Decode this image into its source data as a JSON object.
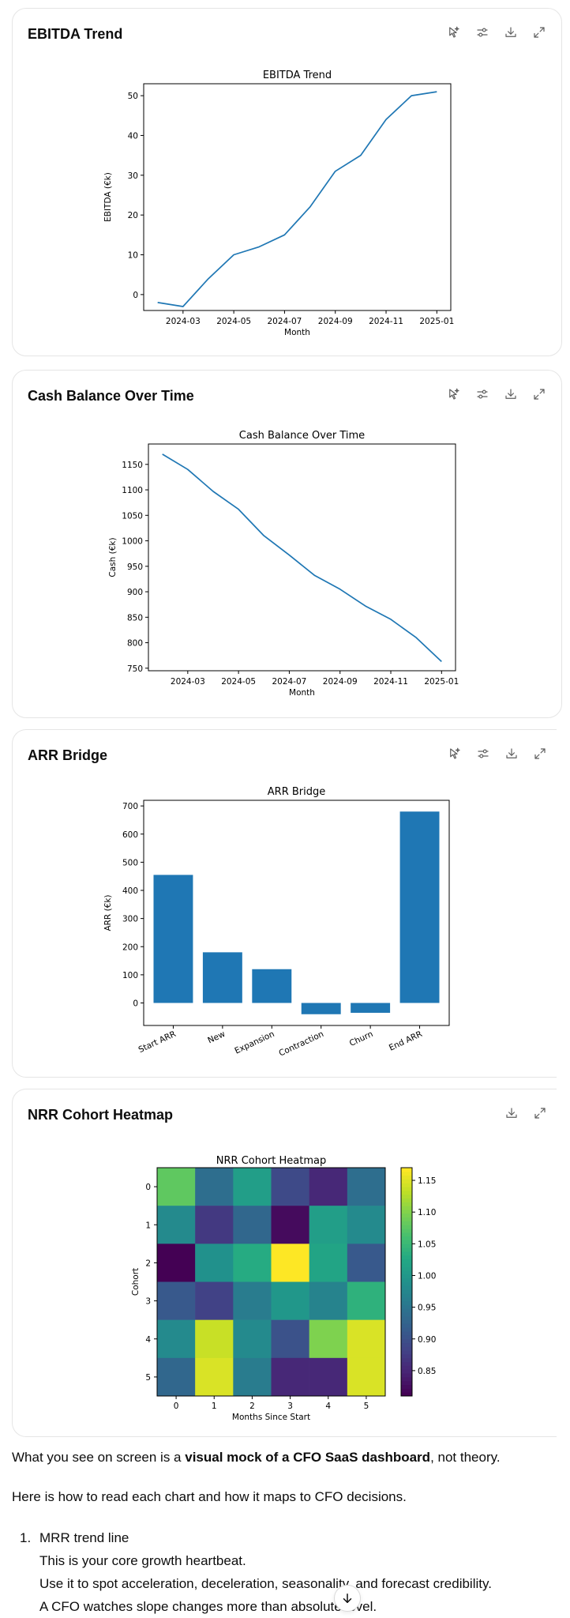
{
  "cards": [
    {
      "title": "EBITDA Trend",
      "actions": [
        "explain-icon",
        "settings-icon",
        "download-icon",
        "expand-icon"
      ],
      "chart_data": {
        "type": "line",
        "title": "EBITDA Trend",
        "xlabel": "Month",
        "ylabel": "EBITDA (€k)",
        "x": [
          "2024-02",
          "2024-03",
          "2024-04",
          "2024-05",
          "2024-06",
          "2024-07",
          "2024-08",
          "2024-09",
          "2024-10",
          "2024-11",
          "2024-12",
          "2025-01"
        ],
        "values": [
          -2,
          -3,
          4,
          10,
          12,
          15,
          22,
          31,
          35,
          44,
          50,
          51
        ],
        "xticks": [
          "2024-03",
          "2024-05",
          "2024-07",
          "2024-09",
          "2024-11",
          "2025-01"
        ],
        "yticks": [
          0,
          10,
          20,
          30,
          40,
          50
        ],
        "ylim": [
          -4,
          53
        ],
        "color": "#1f77b4"
      }
    },
    {
      "title": "Cash Balance Over Time",
      "actions": [
        "explain-icon",
        "settings-icon",
        "download-icon",
        "expand-icon"
      ],
      "chart_data": {
        "type": "line",
        "title": "Cash Balance Over Time",
        "xlabel": "Month",
        "ylabel": "Cash (€k)",
        "x": [
          "2024-02",
          "2024-03",
          "2024-04",
          "2024-05",
          "2024-06",
          "2024-07",
          "2024-08",
          "2024-09",
          "2024-10",
          "2024-11",
          "2024-12",
          "2025-01"
        ],
        "values": [
          1170,
          1140,
          1097,
          1062,
          1010,
          972,
          932,
          905,
          872,
          846,
          810,
          763
        ],
        "xticks": [
          "2024-03",
          "2024-05",
          "2024-07",
          "2024-09",
          "2024-11",
          "2025-01"
        ],
        "yticks": [
          750,
          800,
          850,
          900,
          950,
          1000,
          1050,
          1100,
          1150
        ],
        "ylim": [
          745,
          1190
        ],
        "color": "#1f77b4"
      }
    },
    {
      "title": "ARR Bridge",
      "actions": [
        "explain-icon",
        "settings-icon",
        "download-icon",
        "expand-icon"
      ],
      "chart_data": {
        "type": "bar",
        "title": "ARR Bridge",
        "xlabel": "",
        "ylabel": "ARR (€k)",
        "categories": [
          "Start ARR",
          "New",
          "Expansion",
          "Contraction",
          "Churn",
          "End ARR"
        ],
        "values": [
          455,
          180,
          120,
          -40,
          -35,
          680
        ],
        "yticks": [
          0,
          100,
          200,
          300,
          400,
          500,
          600,
          700
        ],
        "ylim": [
          -80,
          720
        ],
        "color": "#1f77b4"
      }
    },
    {
      "title": "NRR Cohort Heatmap",
      "actions": [
        "download-icon",
        "expand-icon"
      ],
      "chart_data": {
        "type": "heatmap",
        "title": "NRR Cohort Heatmap",
        "xlabel": "Months Since Start",
        "ylabel": "Cohort",
        "x": [
          "0",
          "1",
          "2",
          "3",
          "4",
          "5"
        ],
        "y": [
          "0",
          "1",
          "2",
          "3",
          "4",
          "5"
        ],
        "values": [
          [
            1.08,
            0.94,
            1.01,
            0.89,
            0.85,
            0.94
          ],
          [
            0.98,
            0.87,
            0.93,
            0.82,
            1.01,
            0.98
          ],
          [
            0.81,
            0.99,
            1.03,
            1.17,
            1.02,
            0.91
          ],
          [
            0.91,
            0.88,
            0.96,
            1.0,
            0.97,
            1.04
          ],
          [
            0.98,
            1.14,
            0.98,
            0.9,
            1.1,
            1.15
          ],
          [
            0.93,
            1.15,
            0.96,
            0.85,
            0.85,
            1.15
          ]
        ],
        "colorbar_ticks": [
          0.85,
          0.9,
          0.95,
          1.0,
          1.05,
          1.1,
          1.15
        ],
        "vmin": 0.81,
        "vmax": 1.17,
        "colormap": "viridis"
      }
    }
  ],
  "prose": {
    "p1_a": "What you see on screen is a ",
    "p1_b": "visual mock of a CFO SaaS dashboard",
    "p1_c": ", not theory.",
    "p2": "Here is how to read each chart and how it maps to CFO decisions."
  },
  "list": {
    "number": "1.",
    "heading": "MRR trend line",
    "line1": "This is your core growth heartbeat.",
    "line2": "Use it to spot acceleration, deceleration, seasonality, and forecast credibility.",
    "line3": "A CFO watches slope changes more than absolute level."
  },
  "scroll_button": "arrow-down-icon"
}
